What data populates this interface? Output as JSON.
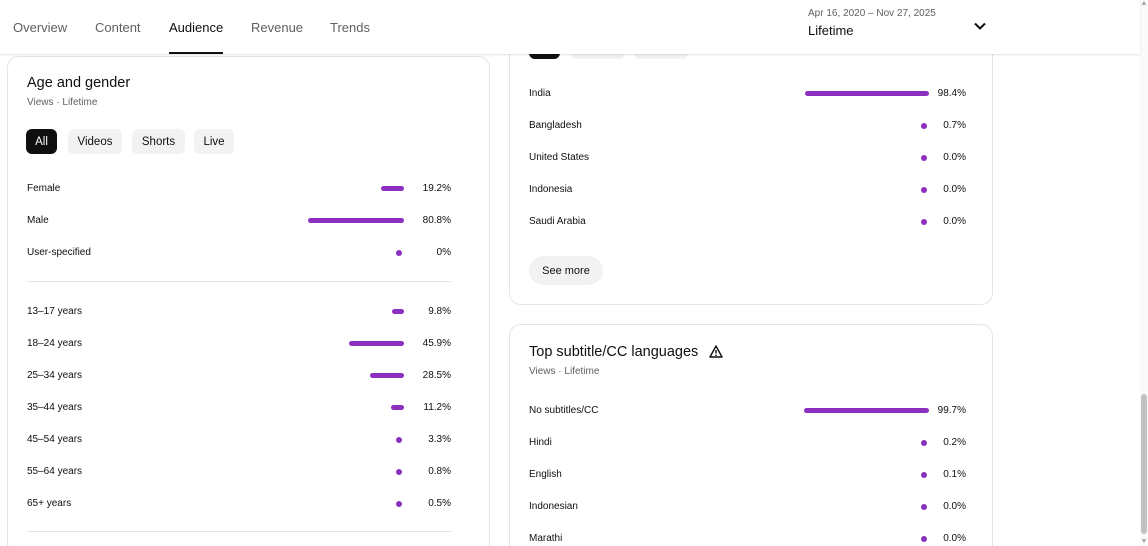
{
  "tabs": [
    {
      "label": "Overview"
    },
    {
      "label": "Content"
    },
    {
      "label": "Audience"
    },
    {
      "label": "Revenue"
    },
    {
      "label": "Trends"
    }
  ],
  "date_range": {
    "range": "Apr 16, 2020 – Nov 27, 2025",
    "period": "Lifetime"
  },
  "age_gender": {
    "title": "Age and gender",
    "subtitle": "Views · Lifetime",
    "filters": [
      {
        "label": "All"
      },
      {
        "label": "Videos"
      },
      {
        "label": "Shorts"
      },
      {
        "label": "Live"
      }
    ],
    "gender": [
      {
        "label": "Female",
        "value": "19.2%",
        "pct": 19.2
      },
      {
        "label": "Male",
        "value": "80.8%",
        "pct": 80.8
      },
      {
        "label": "User-specified",
        "value": "0%",
        "pct": 0
      }
    ],
    "ages": [
      {
        "label": "13–17 years",
        "value": "9.8%",
        "pct": 9.8
      },
      {
        "label": "18–24 years",
        "value": "45.9%",
        "pct": 45.9
      },
      {
        "label": "25–34 years",
        "value": "28.5%",
        "pct": 28.5
      },
      {
        "label": "35–44 years",
        "value": "11.2%",
        "pct": 11.2
      },
      {
        "label": "45–54 years",
        "value": "3.3%",
        "pct": 3.3
      },
      {
        "label": "55–64 years",
        "value": "0.8%",
        "pct": 0.8
      },
      {
        "label": "65+ years",
        "value": "0.5%",
        "pct": 0.5
      }
    ]
  },
  "geography": {
    "rows": [
      {
        "label": "India",
        "value": "98.4%",
        "pct": 98.4
      },
      {
        "label": "Bangladesh",
        "value": "0.7%",
        "pct": 0.7
      },
      {
        "label": "United States",
        "value": "0.0%",
        "pct": 0.0
      },
      {
        "label": "Indonesia",
        "value": "0.0%",
        "pct": 0.0
      },
      {
        "label": "Saudi Arabia",
        "value": "0.0%",
        "pct": 0.0
      }
    ],
    "see_more": "See more"
  },
  "subtitles": {
    "title": "Top subtitle/CC languages",
    "subtitle": "Views · Lifetime",
    "rows": [
      {
        "label": "No subtitles/CC",
        "value": "99.7%",
        "pct": 99.7
      },
      {
        "label": "Hindi",
        "value": "0.2%",
        "pct": 0.2
      },
      {
        "label": "English",
        "value": "0.1%",
        "pct": 0.1
      },
      {
        "label": "Indonesian",
        "value": "0.0%",
        "pct": 0.0
      },
      {
        "label": "Marathi",
        "value": "0.0%",
        "pct": 0.0
      }
    ]
  },
  "icons": {
    "dropdown": "chevron-down-icon",
    "warning": "warning-icon"
  },
  "colors": {
    "bar": "#8c30c0",
    "active_chip": "#0f0f0f",
    "chip": "#f2f2f2"
  }
}
